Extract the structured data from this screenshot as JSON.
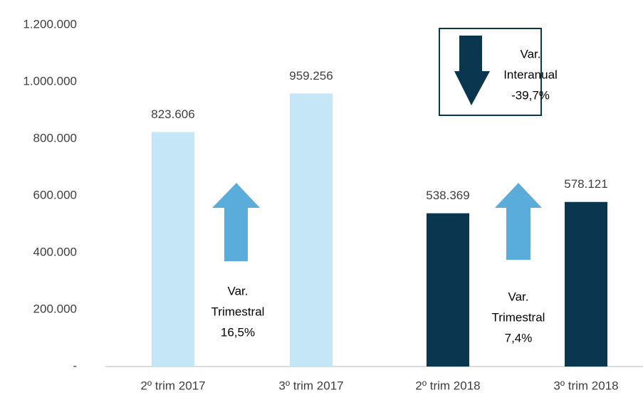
{
  "chart_data": {
    "type": "bar",
    "categories": [
      "2º trim 2017",
      "3º trim 2017",
      "2º trim 2018",
      "3º trim 2018"
    ],
    "values": [
      823606,
      959256,
      538369,
      578121
    ],
    "value_labels": [
      "823.606",
      "959.256",
      "538.369",
      "578.121"
    ],
    "colors": [
      "#c5e6f6",
      "#c5e6f6",
      "#0b3650",
      "#0b3650"
    ],
    "ylim": [
      0,
      1200000
    ],
    "yticks": [
      {
        "value": 0,
        "label": "-"
      },
      {
        "value": 200000,
        "label": "200.000"
      },
      {
        "value": 400000,
        "label": "400.000"
      },
      {
        "value": 600000,
        "label": "600.000"
      },
      {
        "value": 800000,
        "label": "800.000"
      },
      {
        "value": 1000000,
        "label": "1.000.000"
      },
      {
        "value": 1200000,
        "label": "1.200.000"
      }
    ],
    "annotations": [
      {
        "lines": [
          "Var.",
          "Trimestral",
          "16,5%"
        ]
      },
      {
        "lines": [
          "Var.",
          "Trimestral",
          "7,4%"
        ]
      },
      {
        "lines": [
          "Var.",
          "Interanual",
          "-39,7%"
        ]
      }
    ]
  }
}
